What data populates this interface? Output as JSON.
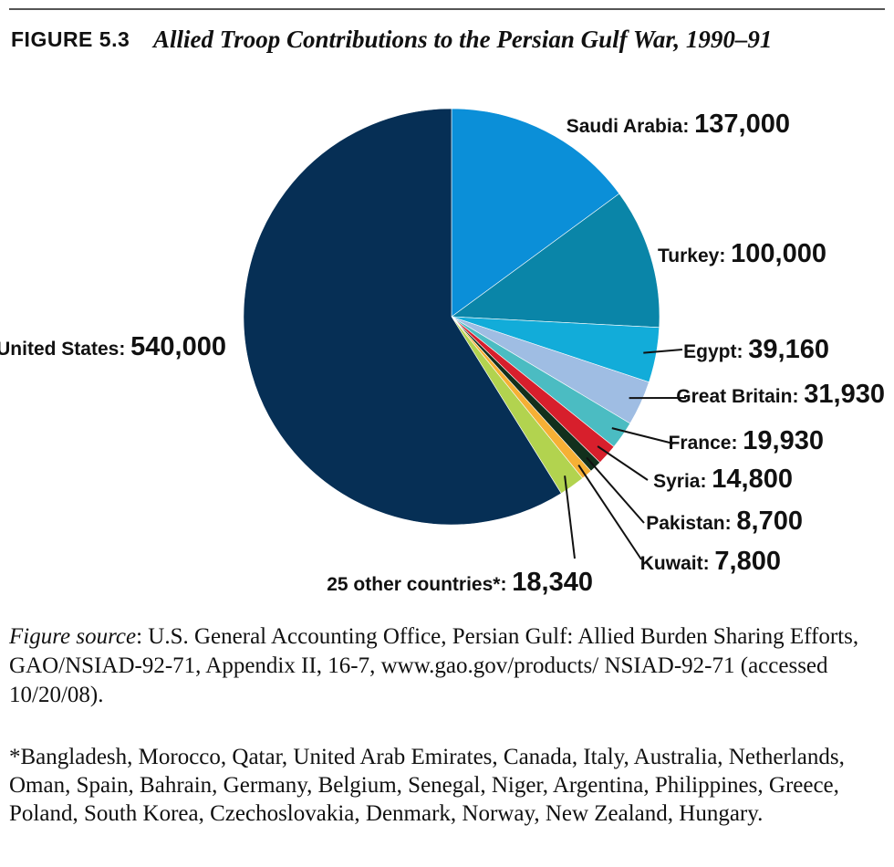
{
  "figure": {
    "number": "FIGURE 5.3",
    "title": "Allied Troop Contributions to the Persian Gulf War, 1990–91"
  },
  "chart_data": {
    "type": "pie",
    "title": "Allied Troop Contributions to the Persian Gulf War, 1990–91",
    "slices": [
      {
        "name": "Saudi Arabia",
        "value": 137000,
        "value_label": "137,000",
        "color": "#0b8fd8"
      },
      {
        "name": "Turkey",
        "value": 100000,
        "value_label": "100,000",
        "color": "#0a85a8"
      },
      {
        "name": "Egypt",
        "value": 39160,
        "value_label": "39,160",
        "color": "#12acd9"
      },
      {
        "name": "Great Britain",
        "value": 31930,
        "value_label": "31,930",
        "color": "#9fbde3"
      },
      {
        "name": "France",
        "value": 19930,
        "value_label": "19,930",
        "color": "#4bbcc2"
      },
      {
        "name": "Syria",
        "value": 14800,
        "value_label": "14,800",
        "color": "#d71f2c"
      },
      {
        "name": "Pakistan",
        "value": 8700,
        "value_label": "8,700",
        "color": "#12301c"
      },
      {
        "name": "Kuwait",
        "value": 7800,
        "value_label": "7,800",
        "color": "#f6b035"
      },
      {
        "name": "25 other countries*",
        "value": 18340,
        "value_label": "18,340",
        "color": "#b2d34f"
      },
      {
        "name": "United States",
        "value": 540000,
        "value_label": "540,000",
        "color": "#062f55"
      }
    ]
  },
  "source": {
    "label": "Figure source",
    "text": ": U.S. General Accounting Office, Persian Gulf: Allied Burden Sharing Efforts, GAO/NSIAD-92-71, Appendix II, 16-7, www.gao.gov/products/ NSIAD-92-71 (accessed 10/20/08)."
  },
  "footnote": "*Bangladesh, Morocco, Qatar, United Arab Emirates, Canada, Italy, Australia, Netherlands, Oman, Spain, Bahrain, Germany, Belgium, Senegal, Niger, Argentina, Philippines, Greece, Poland, South Korea, Czechoslovakia, Denmark, Norway, New Zealand, Hungary."
}
